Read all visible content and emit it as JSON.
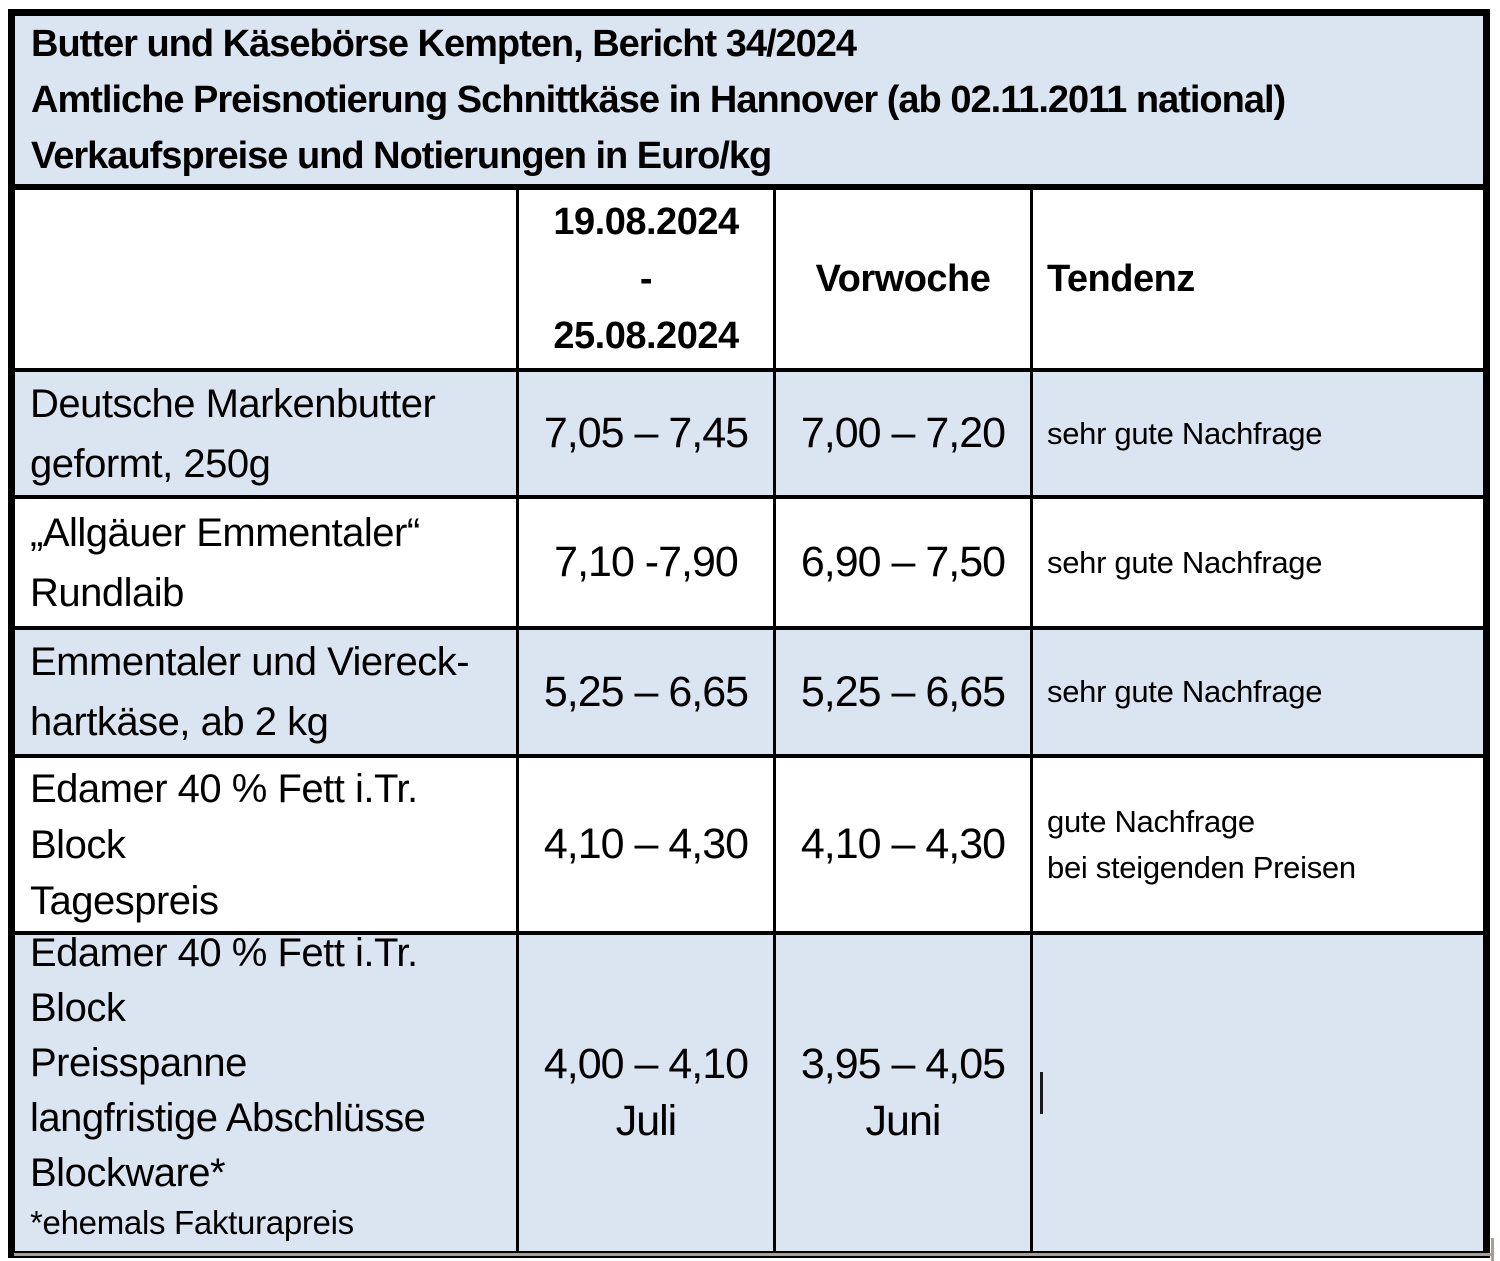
{
  "title": {
    "line1": "Butter und Käsebörse Kempten, Bericht 34/2024",
    "line2": "Amtliche Preisnotierung Schnittkäse in Hannover (ab 02.11.2011 national)",
    "line3": "Verkaufspreise und Notierungen in Euro/kg"
  },
  "col_headers": {
    "product": "",
    "period_line1": "19.08.2024",
    "period_line2": "-",
    "period_line3": "25.08.2024",
    "vorwoche": "Vorwoche",
    "tendenz": "Tendenz"
  },
  "rows": [
    {
      "product": [
        "Deutsche Markenbutter",
        "geformt, 250g"
      ],
      "period": "7,05 – 7,45",
      "vorwoche": "7,00 – 7,20",
      "tendenz": [
        "sehr gute Nachfrage"
      ]
    },
    {
      "product": [
        "„Allgäuer Emmentaler“",
        "Rundlaib"
      ],
      "period": "7,10 -7,90",
      "vorwoche": "6,90 – 7,50",
      "tendenz": [
        "sehr gute Nachfrage"
      ]
    },
    {
      "product": [
        "Emmentaler und Viereck-",
        "hartkäse, ab 2 kg"
      ],
      "period": "5,25 – 6,65",
      "vorwoche": "5,25 – 6,65",
      "tendenz": [
        "sehr gute Nachfrage"
      ]
    },
    {
      "product": [
        "Edamer 40 % Fett i.Tr.",
        "Block",
        "Tagespreis"
      ],
      "period": "4,10 – 4,30",
      "vorwoche": "4,10 – 4,30",
      "tendenz": [
        "gute Nachfrage",
        "bei steigenden Preisen"
      ]
    },
    {
      "product": [
        "Edamer 40 % Fett i.Tr.",
        "Block",
        "Preisspanne",
        "langfristige Abschlüsse",
        "Blockware*"
      ],
      "product_footnote": "*ehemals Fakturapreis",
      "period": [
        "4,00 – 4,10",
        "Juli"
      ],
      "vorwoche": [
        "3,95 – 4,05",
        "Juni"
      ],
      "tendenz": []
    }
  ],
  "colors": {
    "shaded_row_bg": "#dbe5f1",
    "border": "#000000",
    "text": "#000000",
    "frame_shadow": "#a8a096"
  }
}
